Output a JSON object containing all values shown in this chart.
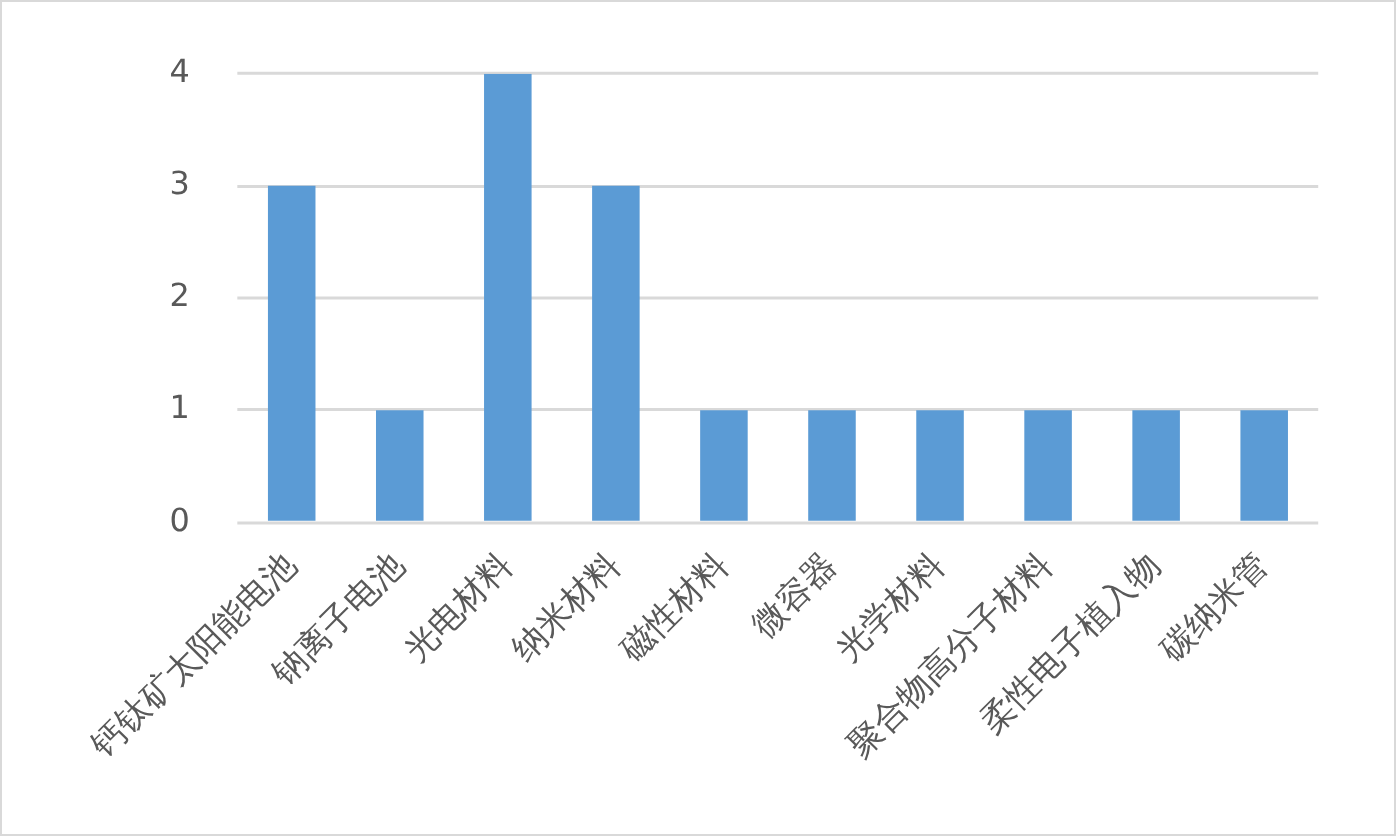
{
  "chart_data": {
    "type": "bar",
    "categories": [
      "钙钛矿太阳能电池",
      "钠离子电池",
      "光电材料",
      "纳米材料",
      "磁性材料",
      "微容器",
      "光学材料",
      "聚合物高分子材料",
      "柔性电子植入物",
      "碳纳米管"
    ],
    "values": [
      3,
      1,
      4,
      3,
      1,
      1,
      1,
      1,
      1,
      1
    ],
    "color": "#5b9bd5",
    "ylim": [
      0,
      4
    ],
    "yticks": [
      0,
      1,
      2,
      3,
      4
    ],
    "grid": "y",
    "legend": false
  }
}
